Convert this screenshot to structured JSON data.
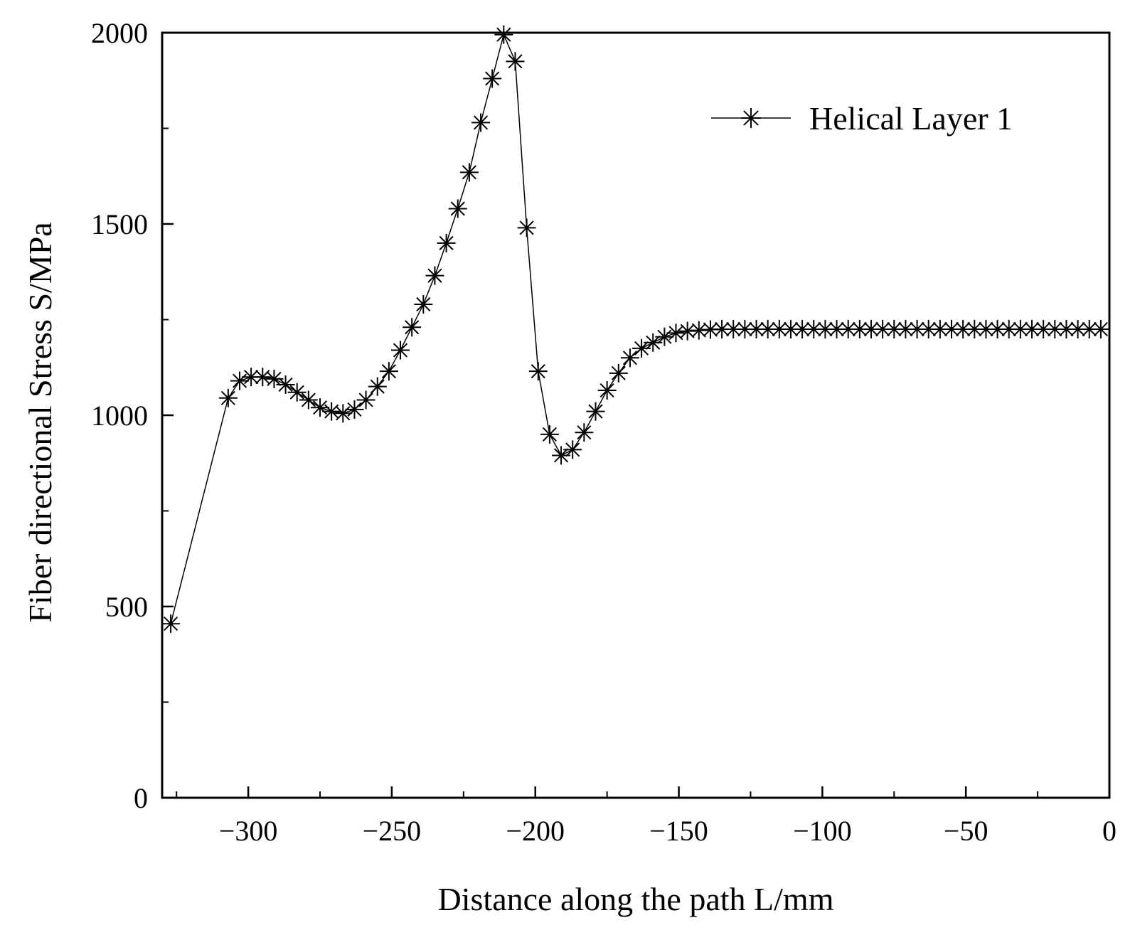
{
  "chart_data": {
    "type": "line",
    "title": "",
    "xlabel": "Distance along the path L/mm",
    "ylabel": "Fiber directional Stress S/MPa",
    "xlim": [
      -330,
      0
    ],
    "ylim": [
      0,
      2000
    ],
    "xticks": [
      -300,
      -250,
      -200,
      -150,
      -100,
      -50,
      0
    ],
    "xtick_labels": [
      "−300",
      "−250",
      "−200",
      "−150",
      "−100",
      "−50",
      "0"
    ],
    "yticks": [
      0,
      500,
      1000,
      1500,
      2000
    ],
    "ytick_labels": [
      "0",
      "500",
      "1000",
      "1500",
      "2000"
    ],
    "grid": false,
    "legend_position": "top-right",
    "series": [
      {
        "name": "Helical Layer 1",
        "marker": "asterisk",
        "color": "#000000",
        "x": [
          -327,
          -307,
          -303,
          -299,
          -295,
          -291,
          -287,
          -283,
          -279,
          -275,
          -271,
          -267,
          -263,
          -259,
          -255,
          -251,
          -247,
          -243,
          -239,
          -235,
          -231,
          -227,
          -223,
          -219,
          -215,
          -211,
          -207,
          -203,
          -199,
          -195,
          -191,
          -187,
          -183,
          -179,
          -175,
          -171,
          -167,
          -163,
          -159,
          -155,
          -151,
          -147,
          -143,
          -139,
          -135,
          -131,
          -127,
          -123,
          -119,
          -115,
          -111,
          -107,
          -103,
          -99,
          -95,
          -91,
          -87,
          -83,
          -79,
          -75,
          -71,
          -67,
          -63,
          -59,
          -55,
          -51,
          -47,
          -43,
          -39,
          -35,
          -31,
          -27,
          -23,
          -19,
          -15,
          -11,
          -7,
          -3
        ],
        "y": [
          455,
          1045,
          1090,
          1100,
          1100,
          1095,
          1080,
          1060,
          1040,
          1020,
          1010,
          1005,
          1015,
          1040,
          1075,
          1115,
          1170,
          1230,
          1290,
          1365,
          1450,
          1540,
          1635,
          1765,
          1880,
          1995,
          1925,
          1490,
          1115,
          950,
          895,
          910,
          955,
          1010,
          1065,
          1110,
          1150,
          1175,
          1190,
          1205,
          1215,
          1220,
          1222,
          1224,
          1225,
          1225,
          1225,
          1225,
          1225,
          1225,
          1225,
          1225,
          1225,
          1225,
          1225,
          1225,
          1225,
          1225,
          1225,
          1225,
          1225,
          1225,
          1225,
          1225,
          1225,
          1225,
          1225,
          1225,
          1225,
          1225,
          1225,
          1225,
          1225,
          1225,
          1225,
          1225,
          1225,
          1225
        ]
      }
    ]
  }
}
